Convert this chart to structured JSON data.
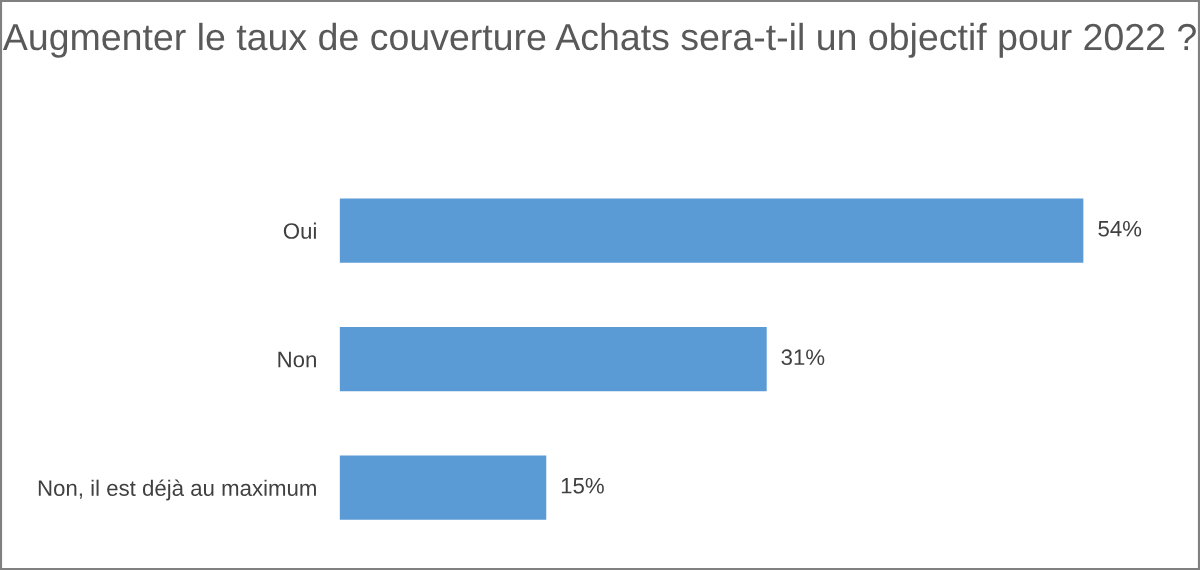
{
  "chart_data": {
    "type": "bar",
    "orientation": "horizontal",
    "title": "Augmenter le taux de couverture Achats sera-t-il un objectif pour 2022 ?",
    "categories": [
      "Oui",
      "Non",
      "Non, il est déjà au maximum"
    ],
    "values": [
      54,
      31,
      15
    ],
    "value_labels": [
      "54%",
      "31%",
      "15%"
    ],
    "color": "#5b9bd5",
    "grid": false,
    "legend": false
  }
}
